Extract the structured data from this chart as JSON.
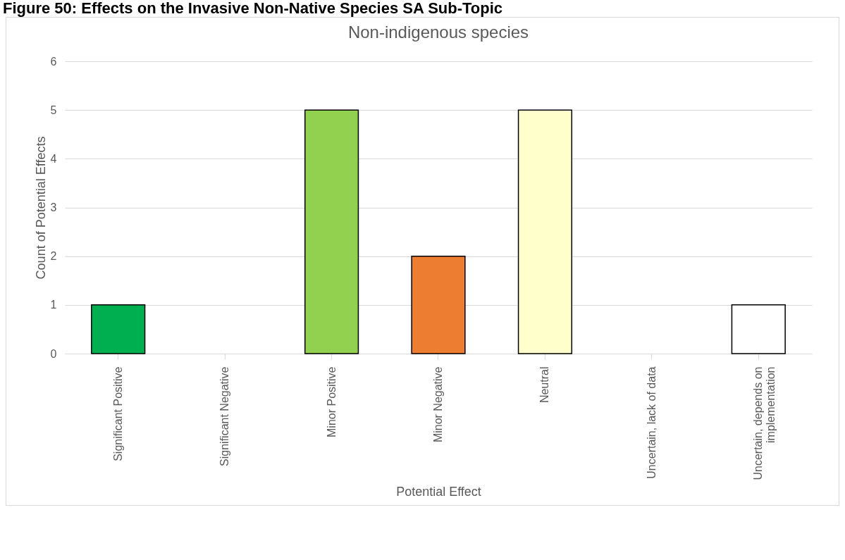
{
  "chart_data": {
    "type": "bar",
    "title": "Non-indigenous species",
    "xlabel": "Potential Effect",
    "ylabel": "Count of Potential Effects",
    "annotations": [
      "Figure 50: Effects on the Invasive Non-Native Species SA Sub-Topic"
    ],
    "categories": [
      "Significant Positive",
      "Significant Negative",
      "Minor Positive",
      "Minor Negative",
      "Neutral",
      "Uncertain, lack of data",
      "Uncertain, depends on implementation"
    ],
    "values": [
      1,
      0,
      5,
      2,
      5,
      0,
      1
    ],
    "colors": [
      "#00b050",
      "#ffffff",
      "#92d050",
      "#ed7d31",
      "#ffffcc",
      "#ffffff",
      "#ffffff"
    ],
    "ylim": [
      0,
      6
    ],
    "yticks": [
      0,
      1,
      2,
      3,
      4,
      5,
      6
    ],
    "grid": "y",
    "legend": false
  }
}
